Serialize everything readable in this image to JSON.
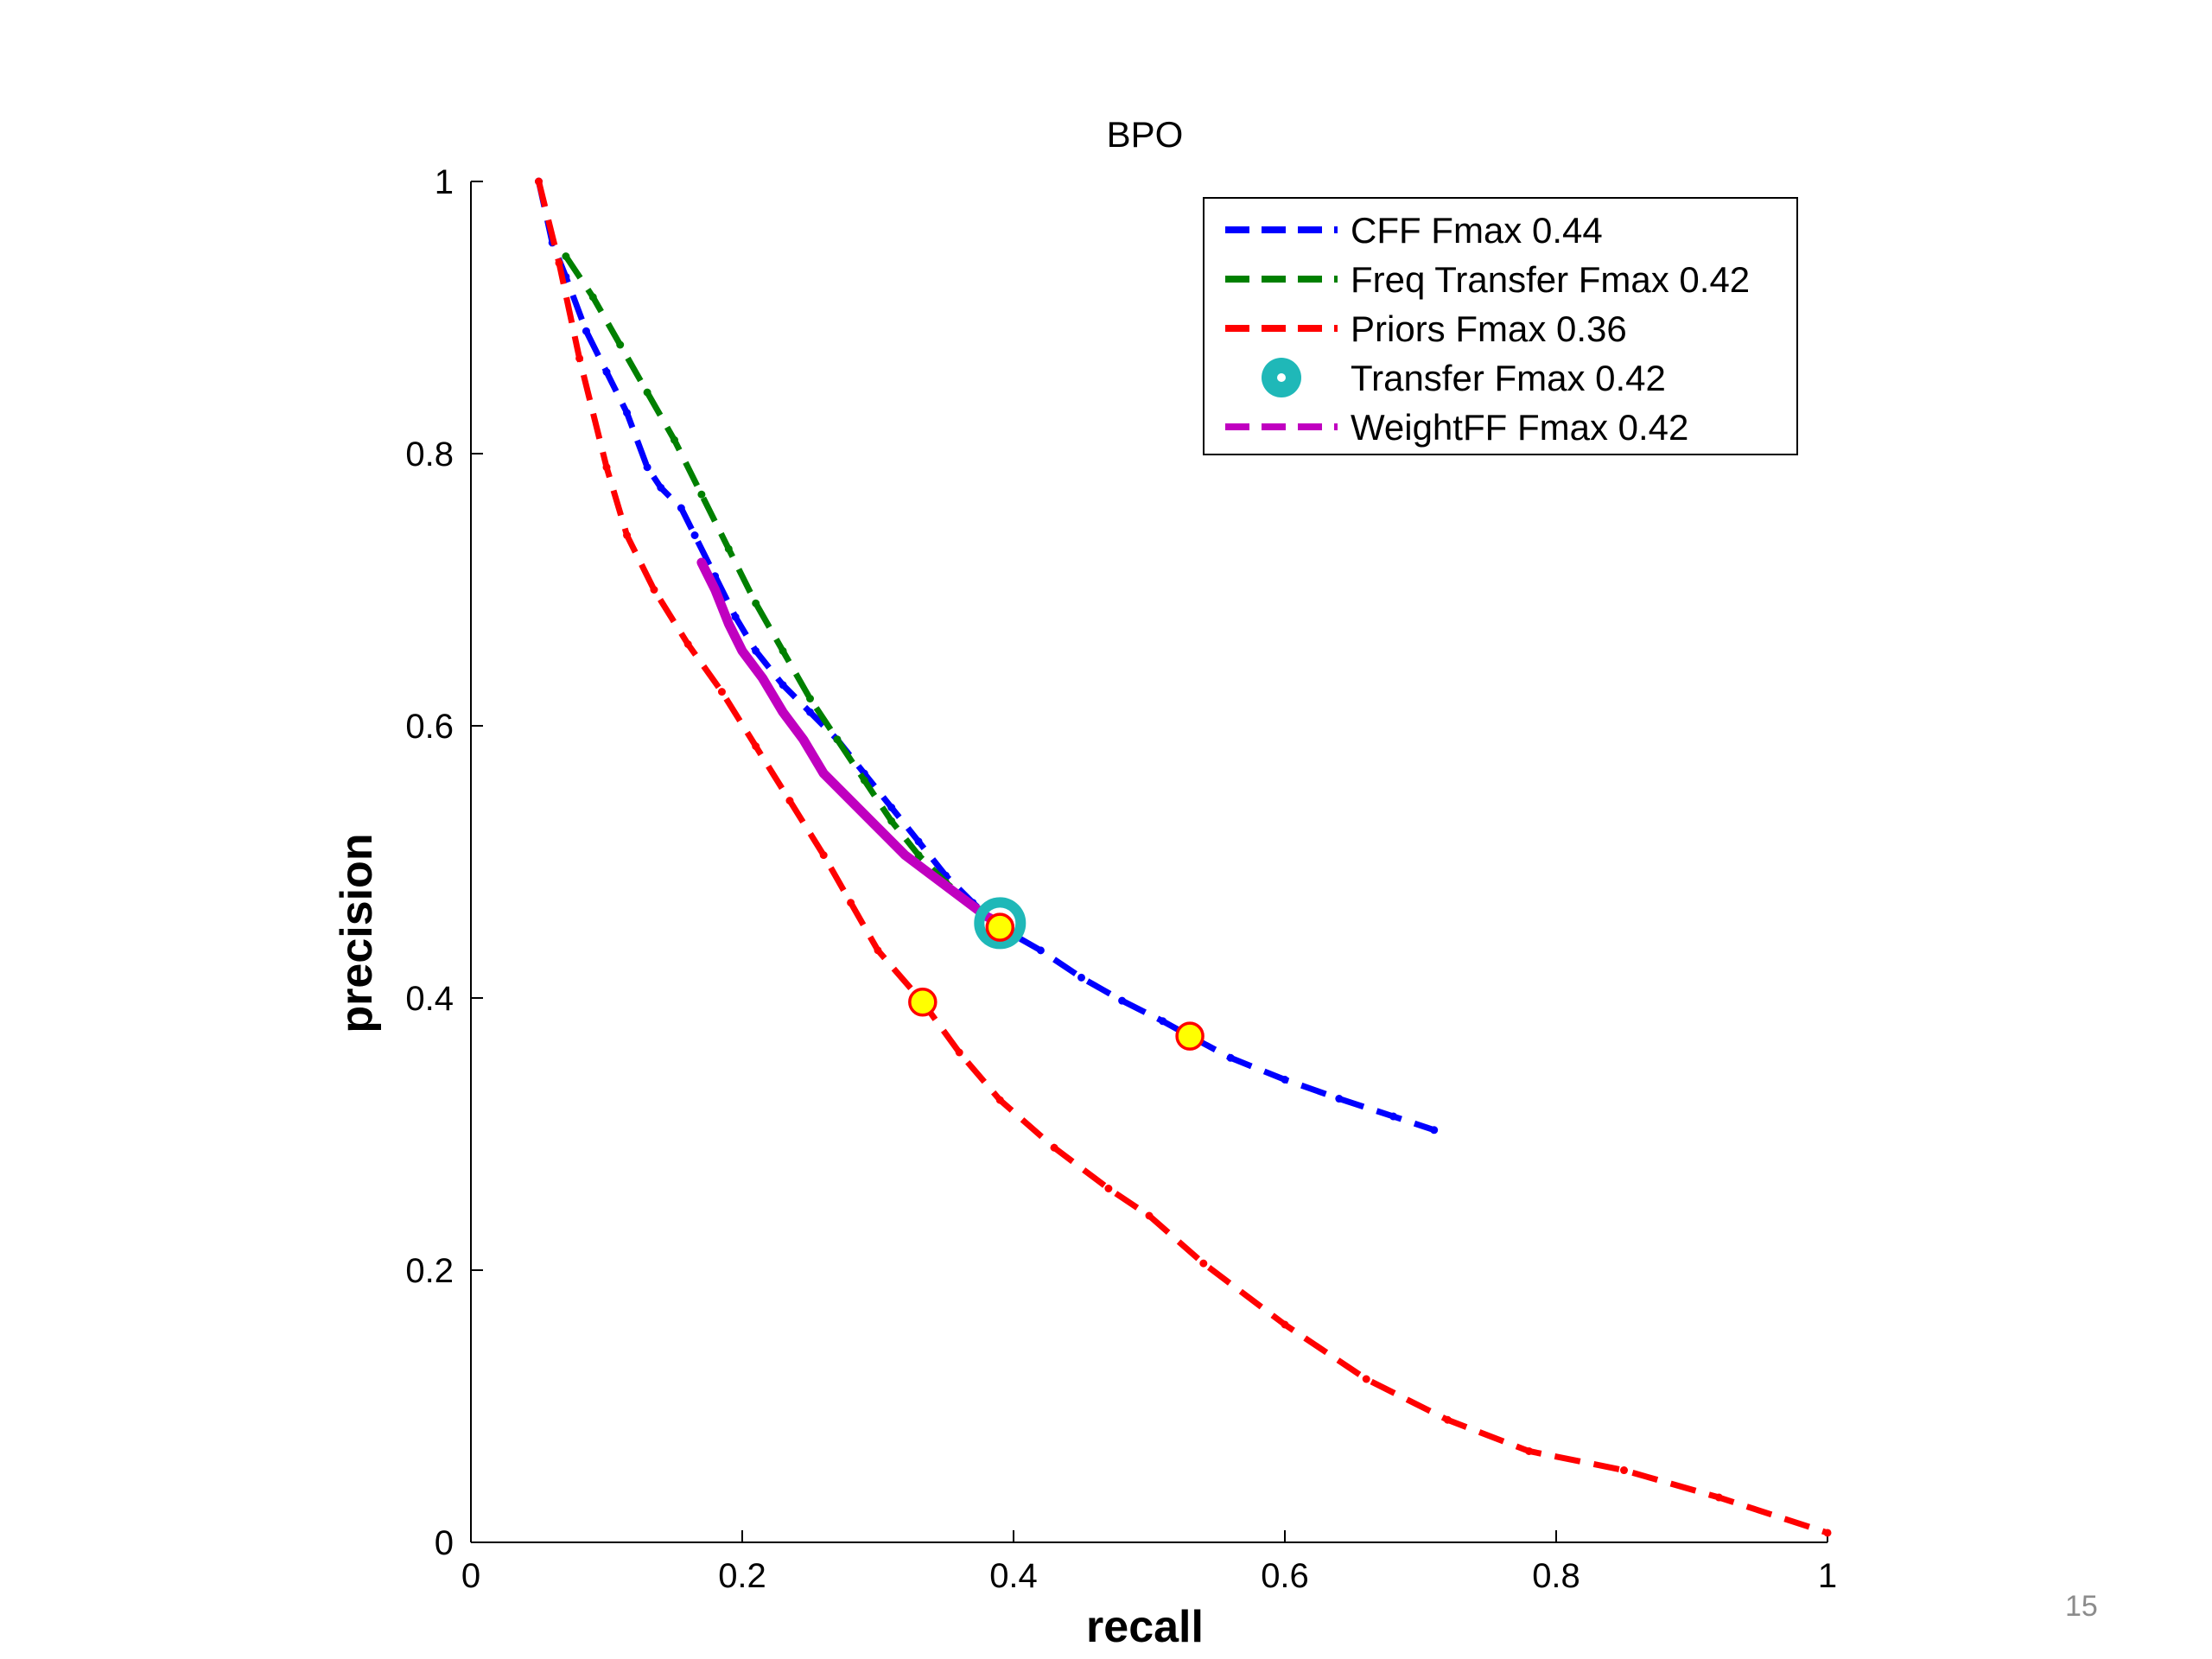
{
  "page_number": "15",
  "chart_data": {
    "type": "line",
    "title": "BPO",
    "xlabel": "recall",
    "ylabel": "precision",
    "xlim": [
      0,
      1
    ],
    "ylim": [
      0,
      1
    ],
    "xticks": [
      "0",
      "0.2",
      "0.4",
      "0.6",
      "0.8",
      "1"
    ],
    "yticks": [
      "0",
      "0.2",
      "0.4",
      "0.6",
      "0.8",
      "1"
    ],
    "grid": false,
    "legend_position": "top-right",
    "series": [
      {
        "name": "CFF Fmax 0.44",
        "color": "#0000ff",
        "style": "dashed",
        "points": [
          [
            0.05,
            1.0
          ],
          [
            0.06,
            0.955
          ],
          [
            0.07,
            0.93
          ],
          [
            0.085,
            0.89
          ],
          [
            0.1,
            0.86
          ],
          [
            0.115,
            0.83
          ],
          [
            0.13,
            0.79
          ],
          [
            0.14,
            0.775
          ],
          [
            0.155,
            0.76
          ],
          [
            0.165,
            0.74
          ],
          [
            0.18,
            0.71
          ],
          [
            0.195,
            0.68
          ],
          [
            0.21,
            0.655
          ],
          [
            0.23,
            0.63
          ],
          [
            0.25,
            0.61
          ],
          [
            0.27,
            0.59
          ],
          [
            0.29,
            0.565
          ],
          [
            0.31,
            0.54
          ],
          [
            0.33,
            0.515
          ],
          [
            0.35,
            0.49
          ],
          [
            0.37,
            0.47
          ],
          [
            0.39,
            0.452
          ],
          [
            0.42,
            0.435
          ],
          [
            0.45,
            0.415
          ],
          [
            0.48,
            0.398
          ],
          [
            0.51,
            0.383
          ],
          [
            0.53,
            0.372
          ],
          [
            0.56,
            0.356
          ],
          [
            0.6,
            0.34
          ],
          [
            0.64,
            0.326
          ],
          [
            0.68,
            0.313
          ],
          [
            0.71,
            0.303
          ]
        ]
      },
      {
        "name": "Freq Transfer Fmax 0.42",
        "color": "#008000",
        "style": "dashed",
        "points": [
          [
            0.07,
            0.945
          ],
          [
            0.09,
            0.915
          ],
          [
            0.11,
            0.88
          ],
          [
            0.13,
            0.845
          ],
          [
            0.15,
            0.81
          ],
          [
            0.17,
            0.77
          ],
          [
            0.19,
            0.73
          ],
          [
            0.21,
            0.69
          ],
          [
            0.23,
            0.655
          ],
          [
            0.25,
            0.62
          ],
          [
            0.27,
            0.59
          ],
          [
            0.29,
            0.56
          ],
          [
            0.31,
            0.53
          ],
          [
            0.33,
            0.505
          ],
          [
            0.35,
            0.485
          ],
          [
            0.37,
            0.468
          ],
          [
            0.39,
            0.455
          ]
        ]
      },
      {
        "name": "Priors Fmax 0.36",
        "color": "#ff0000",
        "style": "dashed",
        "points": [
          [
            0.05,
            1.0
          ],
          [
            0.065,
            0.94
          ],
          [
            0.08,
            0.87
          ],
          [
            0.1,
            0.79
          ],
          [
            0.115,
            0.74
          ],
          [
            0.135,
            0.7
          ],
          [
            0.16,
            0.66
          ],
          [
            0.185,
            0.625
          ],
          [
            0.21,
            0.585
          ],
          [
            0.235,
            0.545
          ],
          [
            0.26,
            0.505
          ],
          [
            0.28,
            0.47
          ],
          [
            0.3,
            0.435
          ],
          [
            0.333,
            0.397
          ],
          [
            0.36,
            0.36
          ],
          [
            0.39,
            0.325
          ],
          [
            0.43,
            0.29
          ],
          [
            0.47,
            0.26
          ],
          [
            0.5,
            0.24
          ],
          [
            0.54,
            0.205
          ],
          [
            0.6,
            0.16
          ],
          [
            0.66,
            0.12
          ],
          [
            0.72,
            0.09
          ],
          [
            0.78,
            0.067
          ],
          [
            0.85,
            0.053
          ],
          [
            0.92,
            0.033
          ],
          [
            1.0,
            0.007
          ]
        ]
      },
      {
        "name": "WeightFF Fmax 0.42",
        "color": "#c000c0",
        "style": "solid",
        "points": [
          [
            0.17,
            0.72
          ],
          [
            0.18,
            0.7
          ],
          [
            0.19,
            0.675
          ],
          [
            0.2,
            0.655
          ],
          [
            0.215,
            0.635
          ],
          [
            0.23,
            0.61
          ],
          [
            0.245,
            0.59
          ],
          [
            0.26,
            0.565
          ],
          [
            0.28,
            0.545
          ],
          [
            0.3,
            0.525
          ],
          [
            0.32,
            0.505
          ],
          [
            0.34,
            0.49
          ],
          [
            0.36,
            0.475
          ],
          [
            0.38,
            0.46
          ],
          [
            0.39,
            0.455
          ]
        ]
      }
    ],
    "markers": [
      {
        "name": "Transfer Fmax 0.42",
        "type": "ring",
        "color": "#1fb8b8",
        "x": 0.39,
        "y": 0.455
      },
      {
        "type": "fmax-point",
        "color": "#ffff00",
        "edge": "#ff0000",
        "x": 0.39,
        "y": 0.452
      },
      {
        "type": "fmax-point",
        "color": "#ffff00",
        "edge": "#ff0000",
        "x": 0.333,
        "y": 0.397
      },
      {
        "type": "fmax-point",
        "color": "#ffff00",
        "edge": "#ff0000",
        "x": 0.53,
        "y": 0.372
      }
    ],
    "legend": [
      {
        "label": "CFF Fmax 0.44",
        "color": "#0000ff",
        "kind": "dashed"
      },
      {
        "label": "Freq Transfer Fmax 0.42",
        "color": "#008000",
        "kind": "dashed"
      },
      {
        "label": "Priors Fmax 0.36",
        "color": "#ff0000",
        "kind": "dashed"
      },
      {
        "label": "Transfer Fmax 0.42",
        "color": "#1fb8b8",
        "kind": "ring"
      },
      {
        "label": "WeightFF Fmax 0.42",
        "color": "#c000c0",
        "kind": "solid-dashed"
      }
    ]
  }
}
